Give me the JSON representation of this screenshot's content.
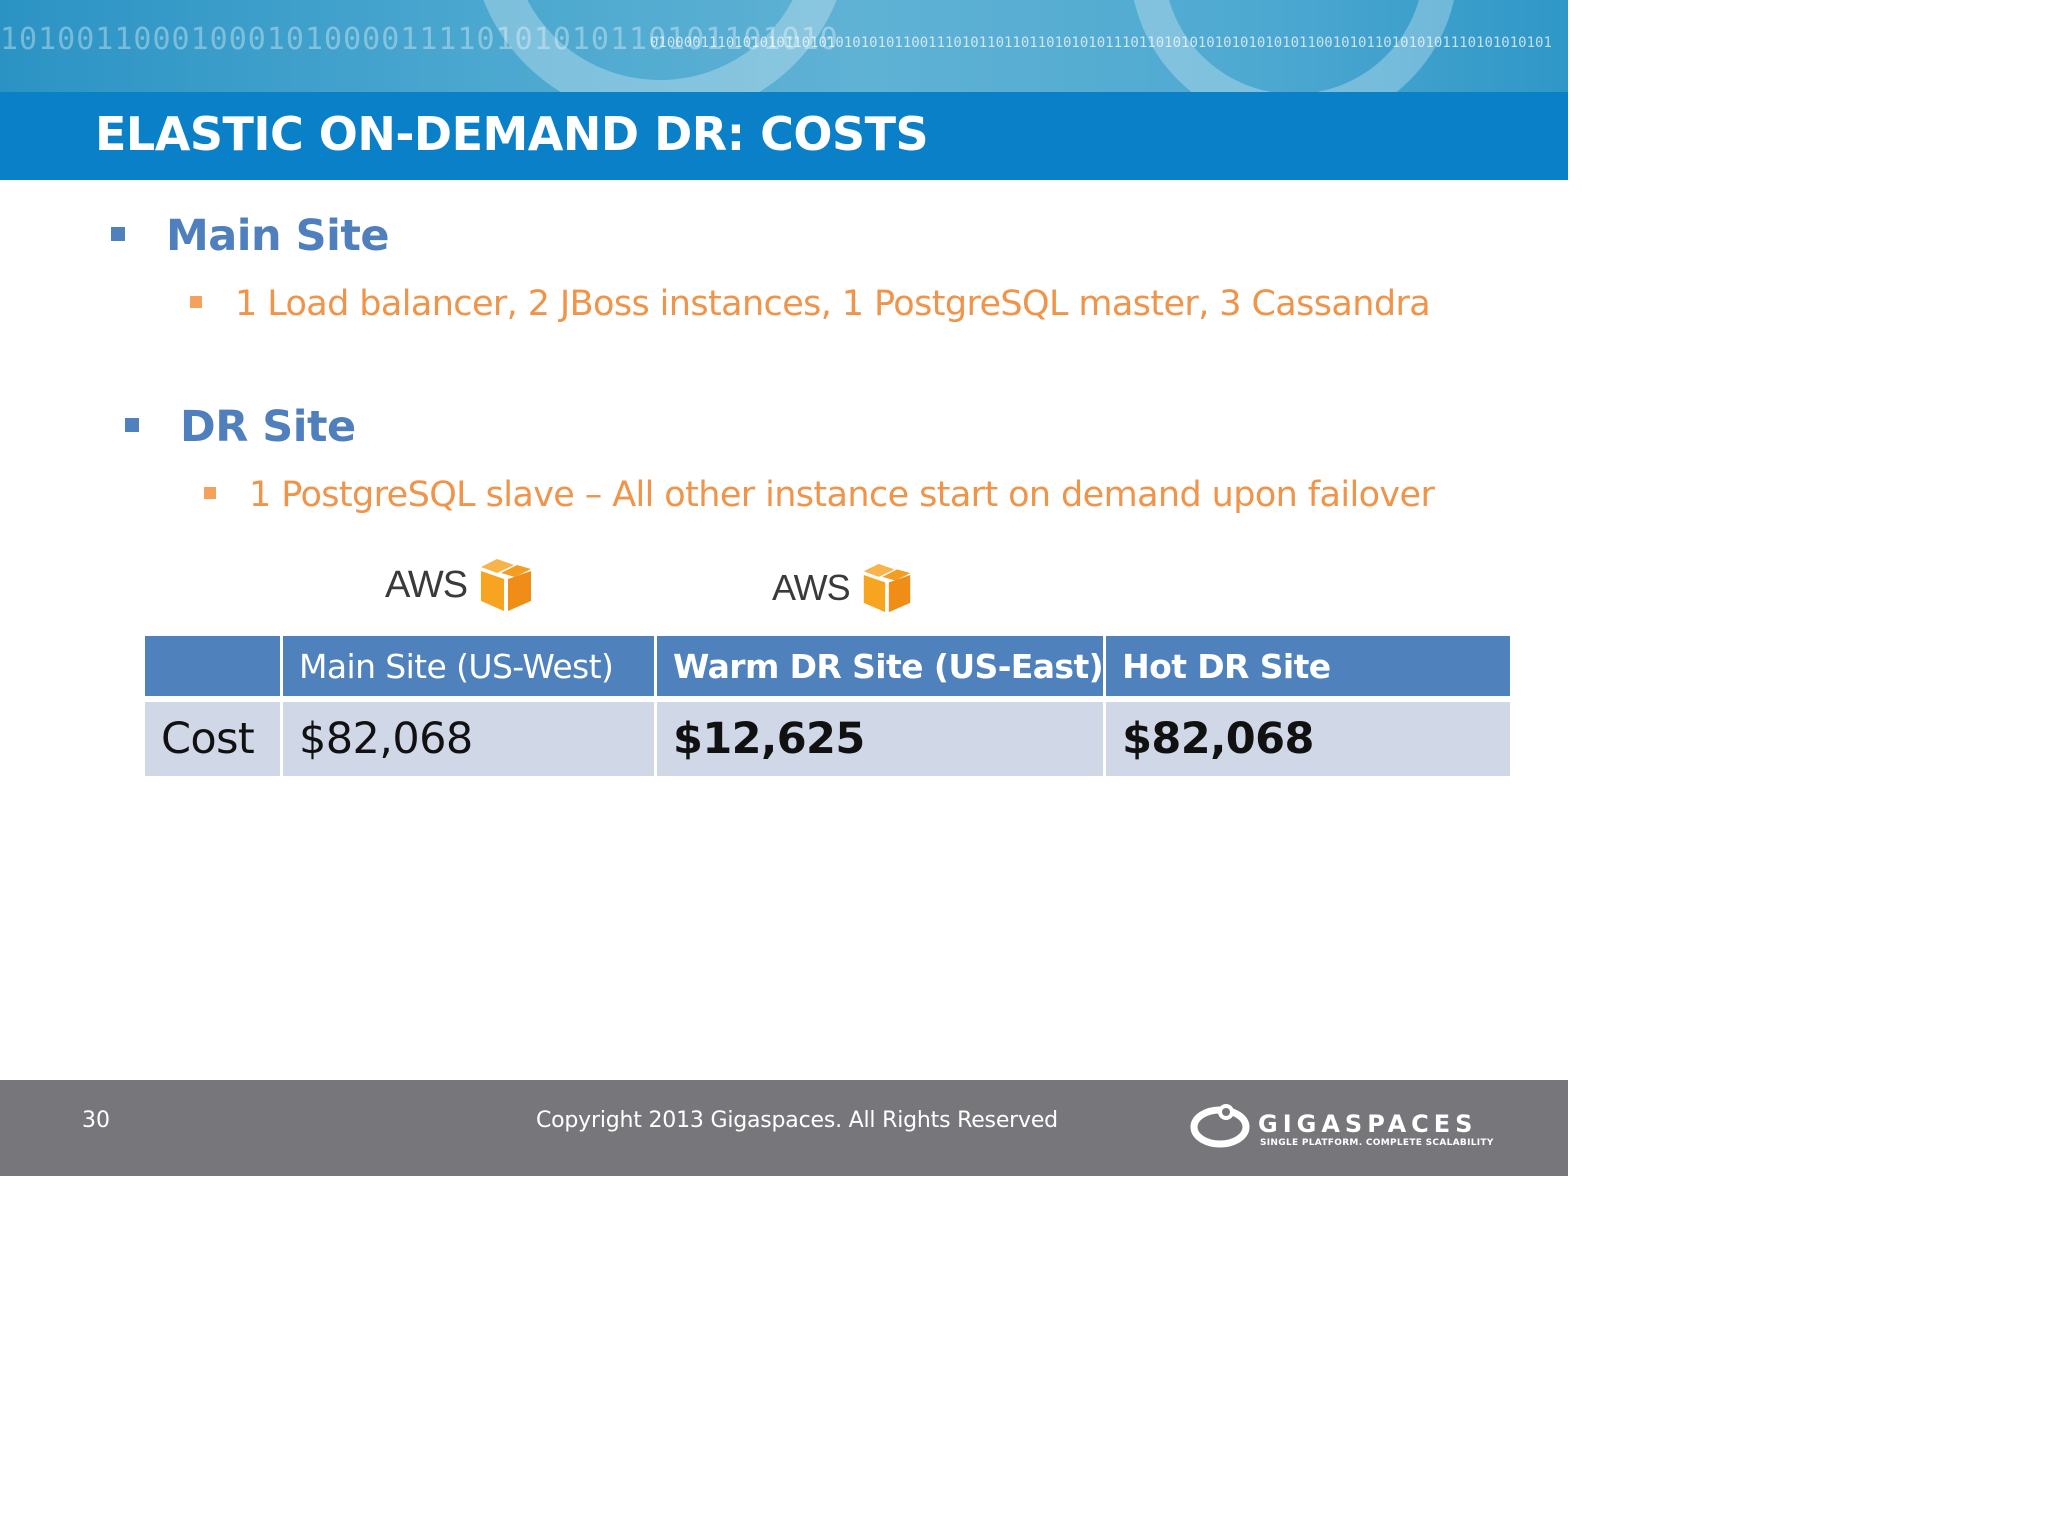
{
  "header": {
    "title": "ELASTIC ON-DEMAND DR: COSTS",
    "binary_big": "10100110001000101000011110101010110101101010",
    "binary_small": "01000011101010101101010101010110011101011011011010101011101101010101010101010110010101101010101110101010101"
  },
  "bullets": [
    {
      "label": "Main Site",
      "sub": "1 Load balancer, 2 JBoss instances, 1 PostgreSQL master, 3 Cassandra"
    },
    {
      "label": "DR Site",
      "sub": "1 PostgreSQL slave – All other instance start on demand upon failover"
    }
  ],
  "logos": {
    "aws_text": "AWS",
    "aws_icon": "aws-cube-icon"
  },
  "table": {
    "headers": [
      "",
      "Main Site (US-West)",
      "Warm DR Site (US-East)",
      "Hot DR Site"
    ],
    "row": {
      "label": "Cost",
      "values": [
        "$82,068",
        "$12,625",
        "$82,068"
      ]
    }
  },
  "footer": {
    "page_number": "30",
    "copyright": "Copyright 2013 Gigaspaces. All Rights Reserved",
    "brand_name": "GIGASPACES",
    "brand_tagline": "SINGLE PLATFORM. COMPLETE SCALABILITY",
    "brand_icon": "gigaspaces-swirl-icon"
  },
  "colors": {
    "title_bar": "#0a80c8",
    "bullet_blue": "#4f7fbc",
    "bullet_orange": "#f0944a",
    "table_header": "#4f81bd",
    "table_row": "#d0d8e8",
    "footer": "#77777b"
  }
}
